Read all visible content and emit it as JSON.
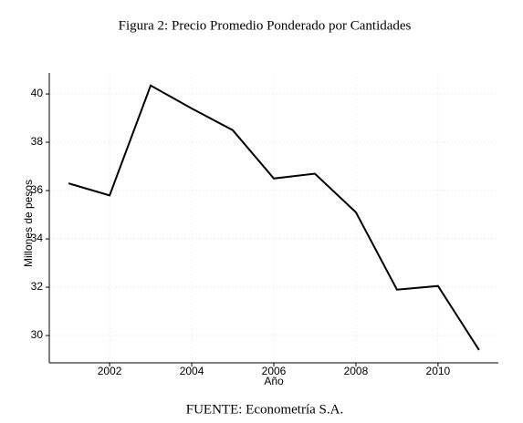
{
  "chart_data": {
    "type": "line",
    "title": "Figura 2: Precio Promedio Ponderado por Cantidades",
    "x_label": "Año",
    "y_label": "Millones de pesos",
    "source": "FUENTE: Econometría S.A.",
    "x": [
      2001,
      2002,
      2003,
      2004,
      2005,
      2006,
      2007,
      2008,
      2009,
      2010,
      2011
    ],
    "series": [
      {
        "name": "Precio promedio",
        "color": "#000000",
        "values": [
          36.3,
          35.8,
          40.35,
          39.4,
          38.5,
          36.5,
          36.7,
          35.1,
          31.9,
          32.05,
          29.4
        ]
      }
    ],
    "xlim": [
      2000.53,
      2011.47
    ],
    "xticks": [
      2002,
      2004,
      2006,
      2008,
      2010
    ],
    "ylim": [
      28.87,
      40.87
    ],
    "yticks": [
      30,
      32,
      34,
      36,
      38,
      40
    ],
    "grid": true
  }
}
